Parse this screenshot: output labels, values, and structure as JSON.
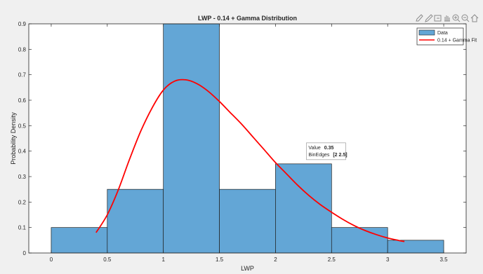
{
  "toolbar": {
    "icons": [
      "brush-icon",
      "pencil-icon",
      "select-icon",
      "pan-icon",
      "zoom-in-icon",
      "zoom-out-icon",
      "home-icon"
    ],
    "color": "#8a8a8a"
  },
  "colors": {
    "figure_bg": "#f0f0f0",
    "axes_bg": "#ffffff",
    "bar_fill": "#63a6d6",
    "bar_edge": "#1e1e1e",
    "fit_line": "#ff0000",
    "text": "#262626"
  },
  "tooltip": {
    "value_label": "Value",
    "value": "0.35",
    "edges_label": "BinEdges",
    "edges": "[2 2.5]",
    "bin_index": 4
  },
  "chart_data": {
    "type": "bar",
    "title": "LWP - 0.14 + Gamma Distribution",
    "xlabel": "LWP",
    "ylabel": "Probability Density",
    "xlim": [
      -0.2,
      3.7
    ],
    "ylim": [
      0,
      0.9
    ],
    "xticks": [
      0,
      0.5,
      1,
      1.5,
      2,
      2.5,
      3,
      3.5
    ],
    "xtick_labels": [
      "0",
      "0.5",
      "1",
      "1.5",
      "2",
      "2.5",
      "3",
      "3.5"
    ],
    "yticks": [
      0,
      0.1,
      0.2,
      0.3,
      0.4,
      0.5,
      0.6,
      0.7,
      0.8,
      0.9
    ],
    "ytick_labels": [
      "0",
      "0.1",
      "0.2",
      "0.3",
      "0.4",
      "0.5",
      "0.6",
      "0.7",
      "0.8",
      "0.9"
    ],
    "grid": false,
    "legend_position": "top-right",
    "series": [
      {
        "name": "Data",
        "kind": "histogram",
        "bin_edges": [
          0,
          0.5,
          1,
          1.5,
          2,
          2.5,
          3,
          3.5
        ],
        "values": [
          0.1,
          0.25,
          0.9,
          0.25,
          0.35,
          0.1,
          0.05
        ]
      },
      {
        "name": "0.14 + Gamma Fit",
        "kind": "line",
        "x": [
          0.4,
          0.5,
          0.6,
          0.7,
          0.8,
          0.9,
          1.0,
          1.1,
          1.2,
          1.3,
          1.4,
          1.5,
          1.6,
          1.7,
          1.8,
          1.9,
          2.0,
          2.1,
          2.2,
          2.3,
          2.4,
          2.5,
          2.6,
          2.7,
          2.8,
          2.9,
          3.0,
          3.1,
          3.15
        ],
        "y": [
          0.08,
          0.15,
          0.25,
          0.37,
          0.48,
          0.57,
          0.64,
          0.675,
          0.68,
          0.665,
          0.635,
          0.595,
          0.55,
          0.505,
          0.455,
          0.405,
          0.355,
          0.31,
          0.265,
          0.225,
          0.19,
          0.16,
          0.132,
          0.108,
          0.088,
          0.072,
          0.059,
          0.049,
          0.045
        ]
      }
    ]
  }
}
